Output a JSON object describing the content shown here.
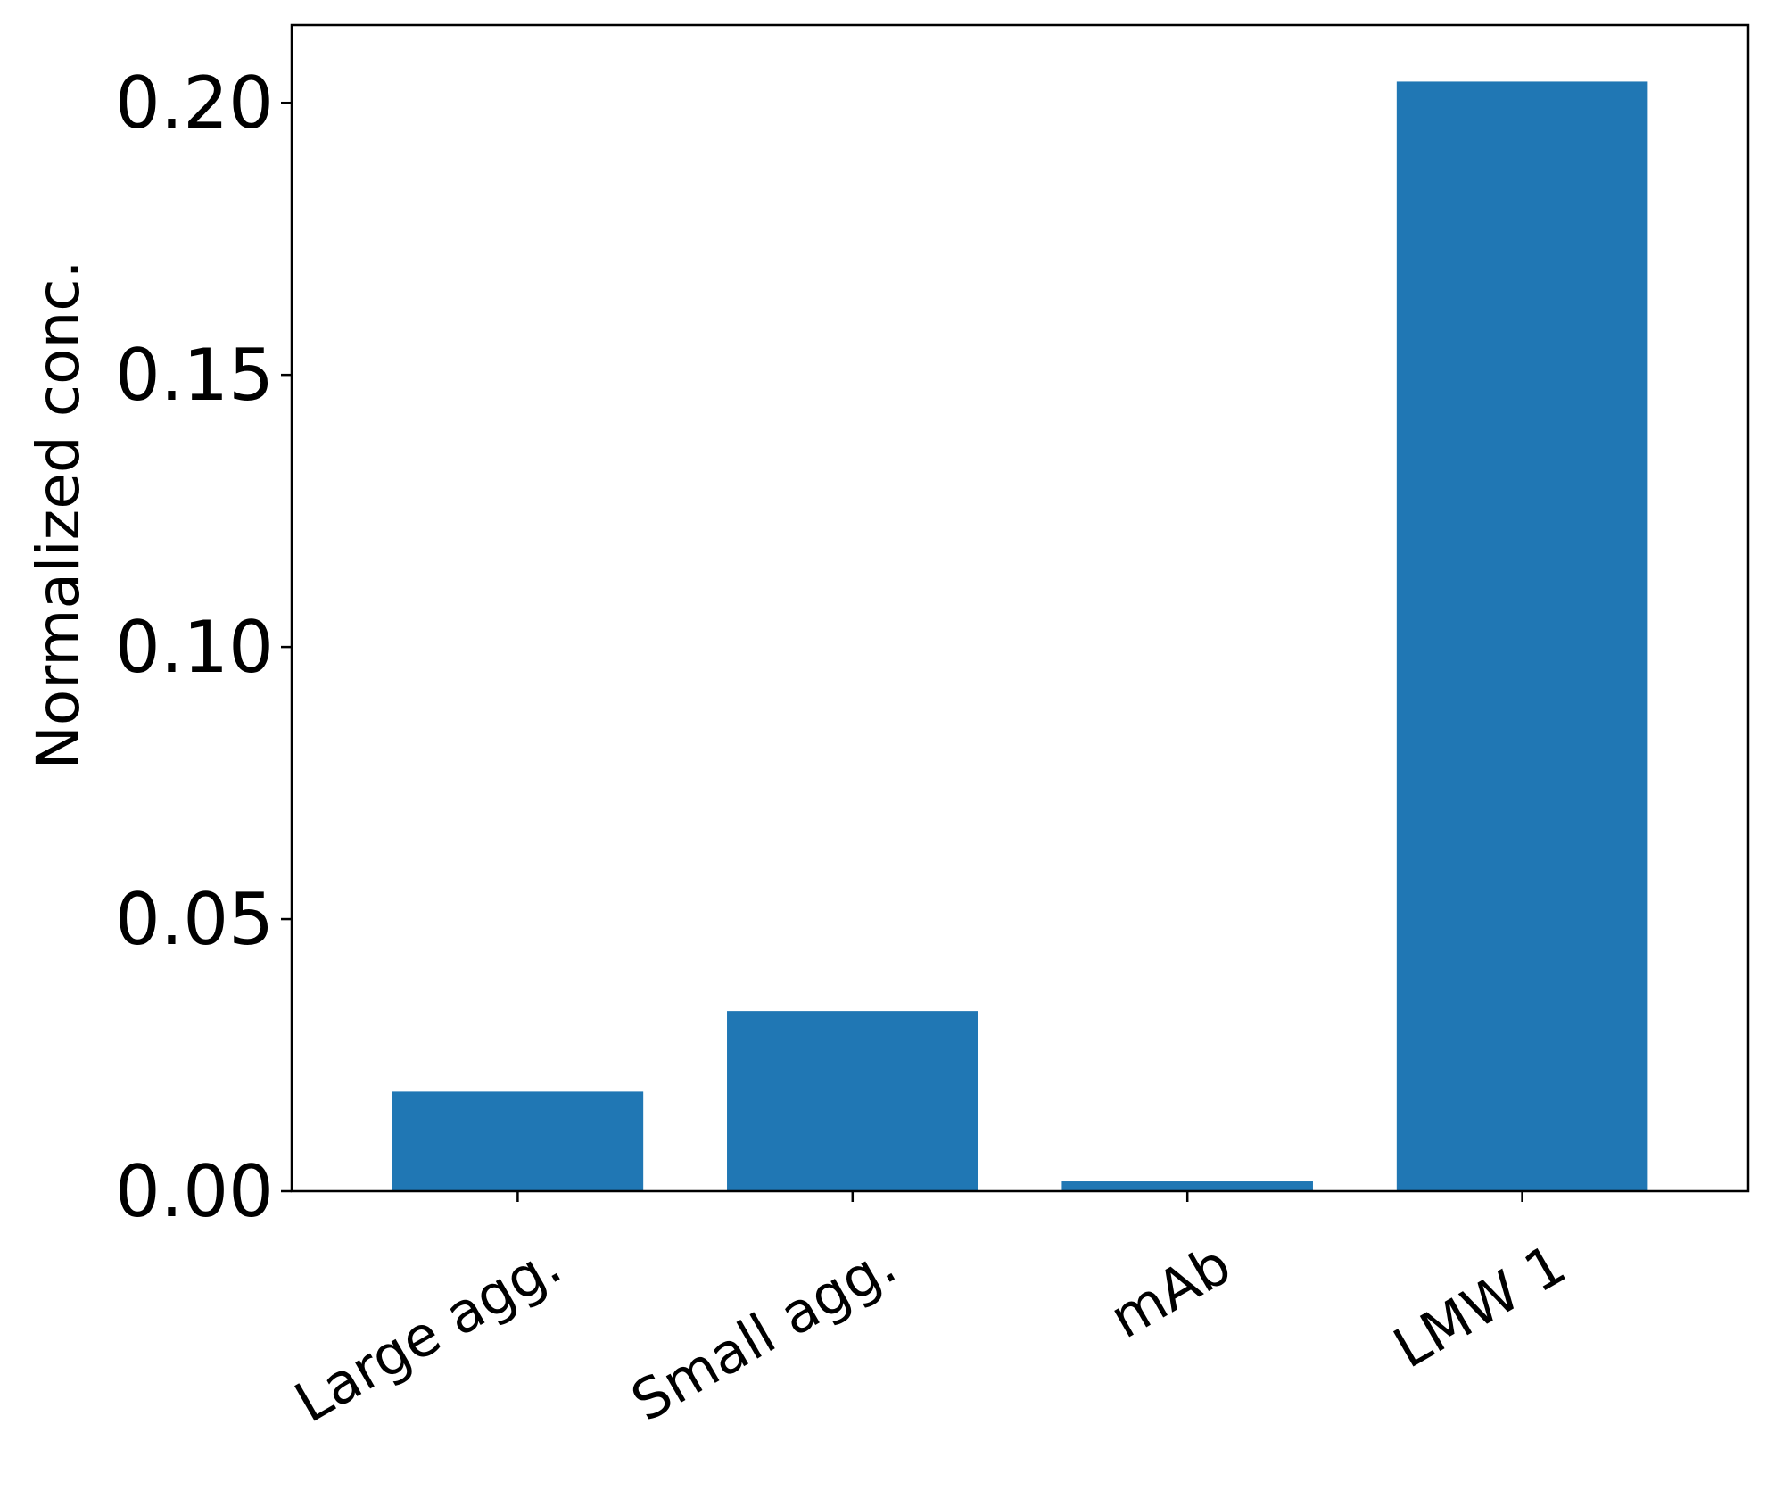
{
  "chart_data": {
    "type": "bar",
    "title": "",
    "xlabel": "",
    "ylabel": "Normalized conc.",
    "categories": [
      "Large agg.",
      "Small agg.",
      "mAb",
      "LMW 1"
    ],
    "values": [
      0.0183,
      0.0331,
      0.0018,
      0.2039
    ],
    "ylim": [
      0,
      0.2143
    ],
    "yticks": [
      "0.00",
      "0.05",
      "0.10",
      "0.15",
      "0.20"
    ],
    "bar_color": "#2077b4",
    "grid": false,
    "legend": "none"
  }
}
